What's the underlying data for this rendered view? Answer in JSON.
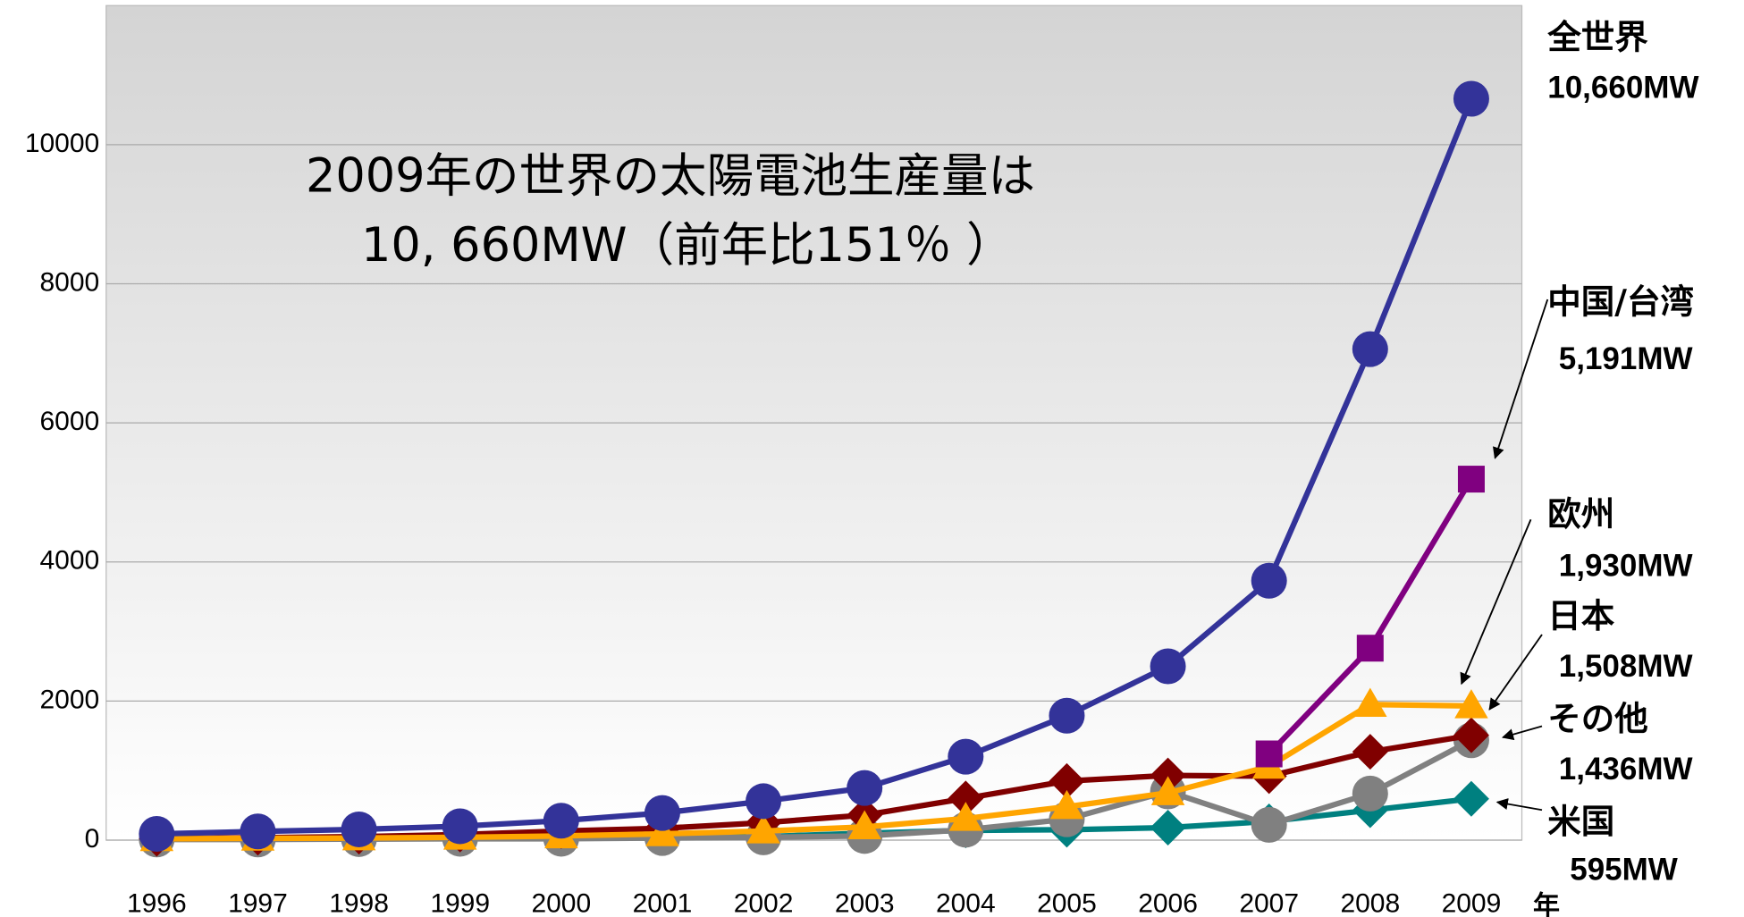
{
  "chart_data": {
    "type": "line",
    "title": [
      "2009年の世界の太陽電池生産量は",
      "10, 660MW（前年比151％ ）"
    ],
    "x_unit": "年",
    "categories": [
      "1996",
      "1997",
      "1998",
      "1999",
      "2000",
      "2001",
      "2002",
      "2003",
      "2004",
      "2005",
      "2006",
      "2007",
      "2008",
      "2009"
    ],
    "ylim": [
      0,
      12000
    ],
    "yticks": [
      0,
      2000,
      4000,
      6000,
      8000,
      10000
    ],
    "grid": true,
    "series": [
      {
        "name": "全世界",
        "color": "#333399",
        "marker": "circle",
        "values": [
          90,
          125,
          155,
          200,
          280,
          390,
          560,
          750,
          1200,
          1790,
          2500,
          3730,
          7060,
          10660
        ],
        "value_labels": [
          null,
          null,
          null,
          null,
          null,
          null,
          null,
          null,
          null,
          null,
          null,
          null,
          null,
          "10,660MW"
        ]
      },
      {
        "name": "中国/台湾",
        "color": "#800080",
        "marker": "square",
        "values": [
          null,
          null,
          null,
          null,
          null,
          null,
          null,
          null,
          null,
          null,
          null,
          1240,
          2760,
          5191
        ],
        "value_labels": [
          null,
          null,
          null,
          null,
          null,
          null,
          null,
          null,
          null,
          null,
          null,
          null,
          null,
          "5,191MW"
        ]
      },
      {
        "name": "欧州",
        "color": "#ffa500",
        "marker": "triangle",
        "values": [
          20,
          25,
          30,
          40,
          60,
          90,
          130,
          190,
          310,
          480,
          680,
          1060,
          1950,
          1930
        ],
        "value_labels": [
          null,
          null,
          null,
          null,
          null,
          null,
          null,
          null,
          null,
          null,
          null,
          null,
          null,
          "1,930MW"
        ]
      },
      {
        "name": "日本",
        "color": "#800000",
        "marker": "diamond",
        "values": [
          20,
          35,
          50,
          80,
          130,
          170,
          250,
          360,
          600,
          850,
          930,
          920,
          1270,
          1508
        ],
        "value_labels": [
          null,
          null,
          null,
          null,
          null,
          null,
          null,
          null,
          null,
          null,
          null,
          null,
          null,
          "1,508MW"
        ]
      },
      {
        "name": "その他",
        "color": "#808080",
        "marker": "circle",
        "values": [
          10,
          10,
          15,
          20,
          20,
          30,
          40,
          60,
          150,
          300,
          700,
          220,
          670,
          1436
        ],
        "value_labels": [
          null,
          null,
          null,
          null,
          null,
          null,
          null,
          null,
          null,
          null,
          null,
          null,
          null,
          "1,436MW"
        ]
      },
      {
        "name": "米国",
        "color": "#008080",
        "marker": "diamond",
        "values": [
          20,
          25,
          30,
          40,
          40,
          30,
          50,
          100,
          140,
          150,
          180,
          270,
          430,
          595
        ],
        "value_labels": [
          null,
          null,
          null,
          null,
          null,
          null,
          null,
          null,
          null,
          null,
          null,
          null,
          null,
          "595MW"
        ]
      }
    ]
  }
}
